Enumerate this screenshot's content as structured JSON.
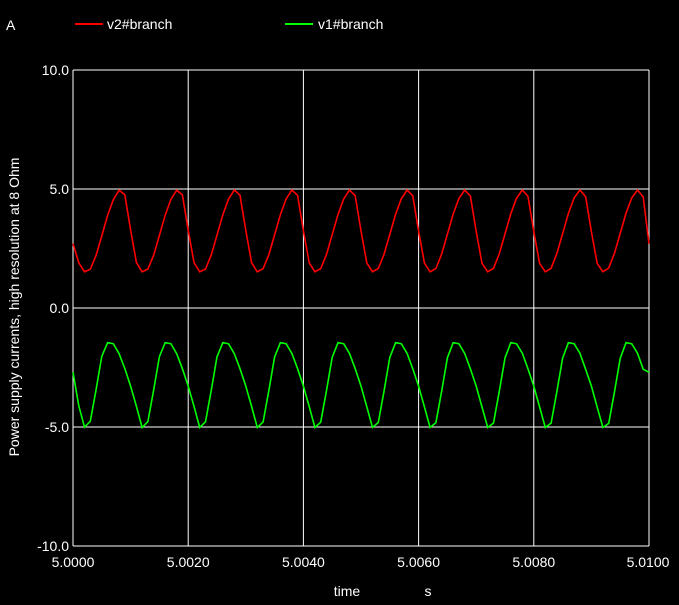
{
  "window": {
    "unit_label": "A"
  },
  "legend": [
    {
      "label": "v2#branch",
      "color": "#ff0000"
    },
    {
      "label": "v1#branch",
      "color": "#00ff00"
    }
  ],
  "chart_data": {
    "type": "line",
    "title": "",
    "ylabel": "Power supply currents, high resolution at 8 Ohm",
    "xlabel": "time",
    "xunit": "s",
    "xlim": [
      5.0,
      5.01
    ],
    "ylim": [
      -10.0,
      10.0
    ],
    "x_ticks": [
      5.0,
      5.002,
      5.004,
      5.006,
      5.008,
      5.01
    ],
    "x_tick_labels": [
      "5.0000",
      "5.0020",
      "5.0040",
      "5.0060",
      "5.0080",
      "5.0100"
    ],
    "y_ticks": [
      10.0,
      5.0,
      0.0,
      -5.0,
      -10.0
    ],
    "y_tick_labels": [
      "10.0",
      "5.0",
      "0.0",
      "-5.0",
      "-10.0"
    ],
    "grid": true,
    "series": [
      {
        "name": "v2#branch",
        "color": "#ff0000",
        "x": [
          5.0,
          5.0001,
          5.0002,
          5.0003,
          5.0004,
          5.0005,
          5.0006,
          5.0007,
          5.0008,
          5.0009,
          5.001,
          5.0011,
          5.0012,
          5.0013,
          5.0014,
          5.0015,
          5.0016,
          5.0017,
          5.0018,
          5.0019,
          5.002,
          5.0021,
          5.0022,
          5.0023,
          5.0024,
          5.0025,
          5.0026,
          5.0027,
          5.0028,
          5.0029,
          5.003,
          5.0031,
          5.0032,
          5.0033,
          5.0034,
          5.0035,
          5.0036,
          5.0037,
          5.0038,
          5.0039,
          5.004,
          5.0041,
          5.0042,
          5.0043,
          5.0044,
          5.0045,
          5.0046,
          5.0047,
          5.0048,
          5.0049,
          5.005,
          5.0051,
          5.0052,
          5.0053,
          5.0054,
          5.0055,
          5.0056,
          5.0057,
          5.0058,
          5.0059,
          5.006,
          5.0061,
          5.0062,
          5.0063,
          5.0064,
          5.0065,
          5.0066,
          5.0067,
          5.0068,
          5.0069,
          5.007,
          5.0071,
          5.0072,
          5.0073,
          5.0074,
          5.0075,
          5.0076,
          5.0077,
          5.0078,
          5.0079,
          5.008,
          5.0081,
          5.0082,
          5.0083,
          5.0084,
          5.0085,
          5.0086,
          5.0087,
          5.0088,
          5.0089,
          5.009,
          5.0091,
          5.0092,
          5.0093,
          5.0094,
          5.0095,
          5.0096,
          5.0097,
          5.0098,
          5.0099,
          5.01
        ],
        "y": [
          2.7,
          1.9,
          1.52,
          1.63,
          2.2,
          3.03,
          3.89,
          4.55,
          4.95,
          4.76,
          3.28,
          1.91,
          1.52,
          1.64,
          2.21,
          3.05,
          3.9,
          4.56,
          4.95,
          4.75,
          3.27,
          1.91,
          1.52,
          1.64,
          2.22,
          3.06,
          3.91,
          4.57,
          4.96,
          4.74,
          3.26,
          1.9,
          1.52,
          1.65,
          2.23,
          3.07,
          3.92,
          4.58,
          4.96,
          4.73,
          3.25,
          1.9,
          1.52,
          1.65,
          2.24,
          3.08,
          3.93,
          4.58,
          4.96,
          4.72,
          3.24,
          1.89,
          1.52,
          1.66,
          2.25,
          3.09,
          3.94,
          4.59,
          4.96,
          4.71,
          3.23,
          1.89,
          1.52,
          1.66,
          2.26,
          3.1,
          3.95,
          4.6,
          4.96,
          4.7,
          3.22,
          1.88,
          1.52,
          1.67,
          2.27,
          3.11,
          3.96,
          4.61,
          4.96,
          4.69,
          3.21,
          1.88,
          1.52,
          1.67,
          2.28,
          3.12,
          3.97,
          4.62,
          4.96,
          4.68,
          3.2,
          1.87,
          1.52,
          1.68,
          2.29,
          3.13,
          3.98,
          4.62,
          4.96,
          4.67,
          2.7
        ]
      },
      {
        "name": "v1#branch",
        "color": "#00ff00",
        "x": [
          5.0,
          5.0001,
          5.0002,
          5.0003,
          5.0004,
          5.0005,
          5.0006,
          5.0007,
          5.0008,
          5.0009,
          5.001,
          5.0011,
          5.0012,
          5.0013,
          5.0014,
          5.0015,
          5.0016,
          5.0017,
          5.0018,
          5.0019,
          5.002,
          5.0021,
          5.0022,
          5.0023,
          5.0024,
          5.0025,
          5.0026,
          5.0027,
          5.0028,
          5.0029,
          5.003,
          5.0031,
          5.0032,
          5.0033,
          5.0034,
          5.0035,
          5.0036,
          5.0037,
          5.0038,
          5.0039,
          5.004,
          5.0041,
          5.0042,
          5.0043,
          5.0044,
          5.0045,
          5.0046,
          5.0047,
          5.0048,
          5.0049,
          5.005,
          5.0051,
          5.0052,
          5.0053,
          5.0054,
          5.0055,
          5.0056,
          5.0057,
          5.0058,
          5.0059,
          5.006,
          5.0061,
          5.0062,
          5.0063,
          5.0064,
          5.0065,
          5.0066,
          5.0067,
          5.0068,
          5.0069,
          5.007,
          5.0071,
          5.0072,
          5.0073,
          5.0074,
          5.0075,
          5.0076,
          5.0077,
          5.0078,
          5.0079,
          5.008,
          5.0081,
          5.0082,
          5.0083,
          5.0084,
          5.0085,
          5.0086,
          5.0087,
          5.0088,
          5.0089,
          5.009,
          5.0091,
          5.0092,
          5.0093,
          5.0094,
          5.0095,
          5.0096,
          5.0097,
          5.0098,
          5.0099,
          5.01
        ],
        "y": [
          -2.7,
          -4.11,
          -5.01,
          -4.76,
          -3.45,
          -2.03,
          -1.46,
          -1.5,
          -1.92,
          -2.54,
          -3.28,
          -4.13,
          -5.02,
          -4.77,
          -3.46,
          -2.04,
          -1.46,
          -1.5,
          -1.92,
          -2.55,
          -3.28,
          -4.13,
          -5.02,
          -4.78,
          -3.47,
          -2.05,
          -1.46,
          -1.5,
          -1.92,
          -2.55,
          -3.28,
          -4.14,
          -5.02,
          -4.79,
          -3.48,
          -2.06,
          -1.46,
          -1.5,
          -1.91,
          -2.55,
          -3.28,
          -4.14,
          -5.02,
          -4.8,
          -3.49,
          -2.07,
          -1.46,
          -1.5,
          -1.91,
          -2.55,
          -3.28,
          -4.15,
          -5.02,
          -4.81,
          -3.5,
          -2.08,
          -1.46,
          -1.5,
          -1.91,
          -2.56,
          -3.28,
          -4.15,
          -5.02,
          -4.82,
          -3.51,
          -2.09,
          -1.46,
          -1.5,
          -1.91,
          -2.56,
          -3.28,
          -4.16,
          -5.02,
          -4.83,
          -3.52,
          -2.1,
          -1.46,
          -1.5,
          -1.9,
          -2.56,
          -3.28,
          -4.16,
          -5.02,
          -4.84,
          -3.53,
          -2.11,
          -1.46,
          -1.5,
          -1.9,
          -2.57,
          -3.28,
          -4.17,
          -5.02,
          -4.85,
          -3.54,
          -2.12,
          -1.46,
          -1.5,
          -1.9,
          -2.57,
          -2.7
        ]
      }
    ]
  }
}
